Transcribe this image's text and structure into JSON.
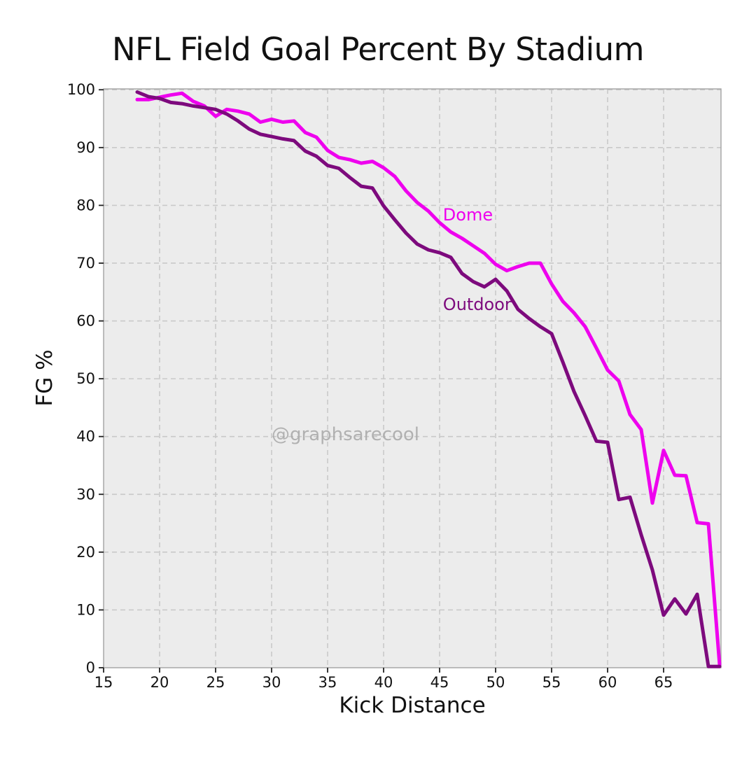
{
  "chart_data": {
    "type": "line",
    "title": "NFL Field Goal Percent By Stadium",
    "xlabel": "Kick Distance",
    "ylabel": "FG %",
    "xlim": [
      15,
      70.125
    ],
    "ylim": [
      0,
      100.15
    ],
    "x_ticks": [
      15,
      20,
      25,
      30,
      35,
      40,
      45,
      50,
      55,
      60,
      65
    ],
    "y_ticks": [
      0,
      10,
      20,
      30,
      40,
      50,
      60,
      70,
      80,
      90,
      100
    ],
    "grid": true,
    "grid_style": "dashed",
    "grid_color": "#c9c9c9",
    "plot_bg_color": "#ececec",
    "spine_color": "#a3a3a3",
    "tick_color": "#222222",
    "text_color": "#111111",
    "legend_position": "inline-annotations",
    "x": [
      18,
      19,
      20,
      21,
      22,
      23,
      24,
      25,
      26,
      27,
      28,
      29,
      30,
      31,
      32,
      33,
      34,
      35,
      36,
      37,
      38,
      39,
      40,
      41,
      42,
      43,
      44,
      45,
      46,
      47,
      48,
      49,
      50,
      51,
      52,
      53,
      54,
      55,
      56,
      57,
      58,
      59,
      60,
      61,
      62,
      63,
      64,
      65,
      66,
      67,
      68,
      69,
      70
    ],
    "series": [
      {
        "name": "Dome",
        "color": "#ee00ee",
        "line_width": 5,
        "label_x": 45.3,
        "label_y": 78.3,
        "values": [
          98.3,
          98.3,
          98.7,
          99.1,
          99.4,
          98.0,
          97.2,
          95.4,
          96.6,
          96.3,
          95.8,
          94.4,
          94.9,
          94.4,
          94.6,
          92.6,
          91.8,
          89.5,
          88.3,
          87.9,
          87.3,
          87.6,
          86.5,
          85.0,
          82.5,
          80.5,
          79.0,
          77.0,
          75.4,
          74.3,
          73.0,
          71.7,
          69.8,
          68.7,
          69.4,
          70.0,
          70.0,
          66.4,
          63.4,
          61.4,
          59.0,
          55.3,
          51.5,
          49.6,
          43.8,
          41.2,
          28.5,
          37.6,
          33.3,
          33.2,
          25.1,
          24.9,
          0.5
        ]
      },
      {
        "name": "Outdoor",
        "color": "#7d0a7d",
        "line_width": 5,
        "label_x": 45.3,
        "label_y": 62.8,
        "values": [
          99.6,
          98.8,
          98.5,
          97.8,
          97.6,
          97.2,
          96.9,
          96.6,
          95.8,
          94.6,
          93.2,
          92.3,
          91.9,
          91.5,
          91.2,
          89.4,
          88.5,
          86.9,
          86.4,
          84.8,
          83.3,
          83.0,
          79.9,
          77.5,
          75.2,
          73.3,
          72.3,
          71.8,
          71.0,
          68.2,
          66.8,
          65.9,
          67.2,
          65.2,
          62.0,
          60.4,
          59.0,
          57.8,
          52.9,
          47.8,
          43.6,
          39.2,
          39.0,
          29.1,
          29.5,
          23.0,
          16.9,
          9.1,
          11.9,
          9.3,
          12.7,
          0.2,
          0.2
        ]
      }
    ],
    "annotations": [
      {
        "text": "@graphsarecool",
        "x": 30.0,
        "y": 40.3,
        "color": "#ababab"
      }
    ]
  }
}
